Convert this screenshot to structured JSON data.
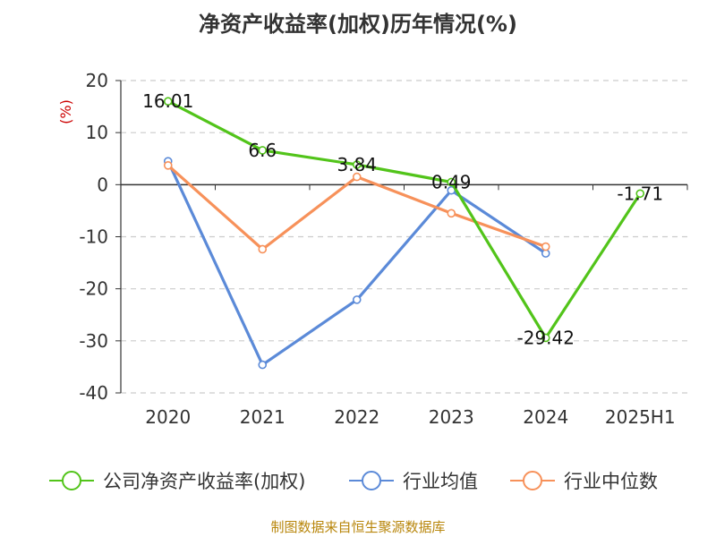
{
  "chart_data": {
    "type": "line",
    "title": "净资产收益率(加权)历年情况(%)",
    "ylabel": "(%)",
    "xlabel": "",
    "categories": [
      "2020",
      "2021",
      "2022",
      "2023",
      "2024",
      "2025H1"
    ],
    "ylim": [
      -40,
      20
    ],
    "yticks": [
      20,
      10,
      0,
      -10,
      -20,
      -30,
      -40
    ],
    "grid": true,
    "legend_position": "bottom",
    "series": [
      {
        "name": "公司净资产收益率(加权)",
        "color": "#52c41a",
        "values": [
          16.01,
          6.6,
          3.84,
          0.49,
          -29.42,
          -1.71
        ],
        "labels": [
          "16.01",
          "6.6",
          "3.84",
          "0.49",
          "-29.42",
          "-1.71"
        ]
      },
      {
        "name": "行业均值",
        "color": "#5b8ad8",
        "values": [
          4.5,
          -34.6,
          -22.1,
          -1.1,
          -13.2,
          null
        ]
      },
      {
        "name": "行业中位数",
        "color": "#f7915a",
        "values": [
          3.7,
          -12.4,
          1.5,
          -5.5,
          -11.9,
          null
        ]
      }
    ],
    "source": "制图数据来自恒生聚源数据库"
  }
}
